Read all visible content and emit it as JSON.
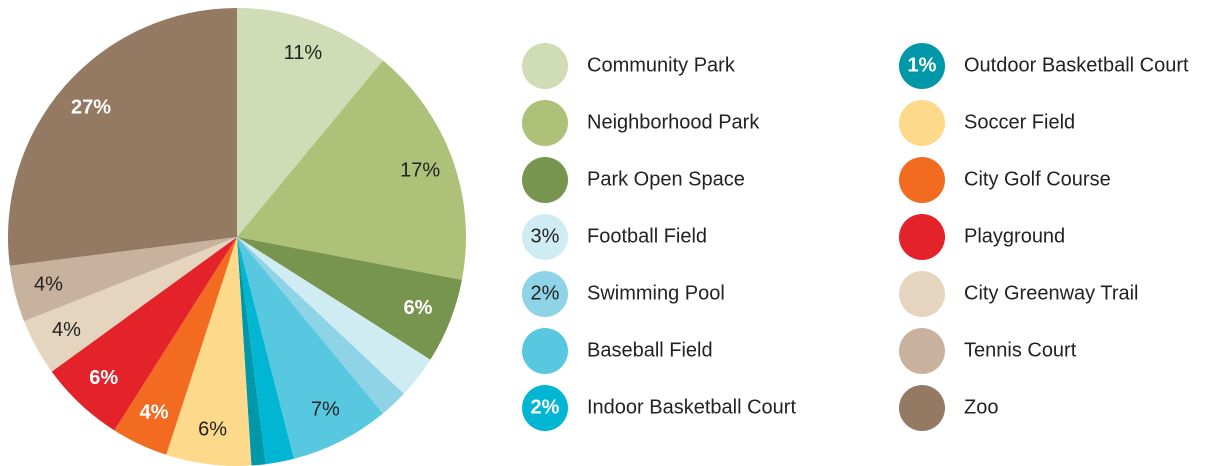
{
  "chart_data": {
    "type": "pie",
    "categories": [
      "Community Park",
      "Neighborhood Park",
      "Park Open Space",
      "Football Field",
      "Swimming Pool",
      "Baseball Field",
      "Indoor Basketball Court",
      "Outdoor Basketball Court",
      "Soccer Field",
      "City Golf Course",
      "Playground",
      "City Greenway Trail",
      "Tennis Court",
      "Zoo"
    ],
    "values": [
      11,
      17,
      6,
      3,
      2,
      7,
      2,
      1,
      6,
      4,
      6,
      4,
      4,
      27
    ],
    "value_labels": [
      "11%",
      "17%",
      "6%",
      "3%",
      "2%",
      "7%",
      "2%",
      "1%",
      "6%",
      "4%",
      "6%",
      "4%",
      "4%",
      "27%"
    ],
    "colors": [
      "#d0dcb5",
      "#adc178",
      "#789550",
      "#d0ecf3",
      "#8fd3e6",
      "#57c8e0",
      "#00b6d3",
      "#0098a8",
      "#fdd98c",
      "#f26b21",
      "#e4222a",
      "#e5d5bf",
      "#c8b29d",
      "#947a62"
    ]
  }
}
